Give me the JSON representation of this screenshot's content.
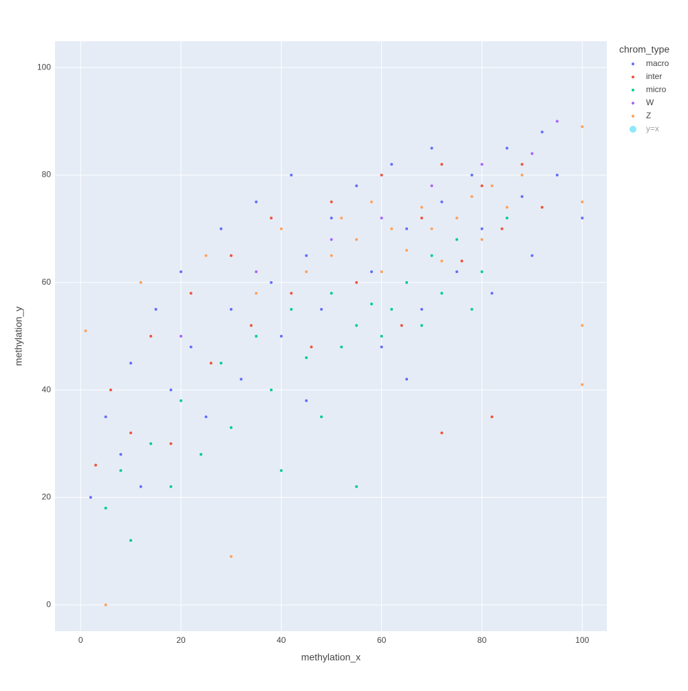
{
  "chart_data": {
    "type": "scatter",
    "x_label": "methylation_x",
    "y_label": "methylation_y",
    "legend_title": "chrom_type",
    "xlim": [
      -5.1,
      104.9
    ],
    "ylim": [
      -4.9,
      104.9
    ],
    "xticks": [
      0,
      20,
      40,
      60,
      80,
      100
    ],
    "yticks": [
      0,
      20,
      40,
      60,
      80,
      100
    ],
    "grid": true,
    "legend": "right",
    "series": [
      {
        "name": "macro",
        "color": "#636efa",
        "x": [
          2,
          5,
          8,
          10,
          12,
          15,
          18,
          20,
          22,
          25,
          28,
          30,
          32,
          35,
          38,
          40,
          42,
          45,
          48,
          50,
          55,
          58,
          60,
          62,
          65,
          68,
          70,
          72,
          75,
          78,
          80,
          82,
          85,
          88,
          90,
          92,
          95,
          100,
          45,
          65
        ],
        "values": [
          20,
          35,
          28,
          45,
          22,
          55,
          40,
          62,
          48,
          35,
          70,
          55,
          42,
          75,
          60,
          50,
          80,
          65,
          55,
          72,
          78,
          62,
          48,
          82,
          70,
          55,
          85,
          75,
          62,
          80,
          70,
          58,
          85,
          76,
          65,
          88,
          80,
          72,
          38,
          42
        ]
      },
      {
        "name": "inter",
        "color": "#EF553B",
        "x": [
          3,
          6,
          10,
          14,
          18,
          22,
          26,
          30,
          34,
          38,
          42,
          46,
          50,
          55,
          60,
          64,
          68,
          72,
          76,
          80,
          84,
          88,
          92,
          82,
          72
        ],
        "values": [
          26,
          40,
          32,
          50,
          30,
          58,
          45,
          65,
          52,
          72,
          58,
          48,
          75,
          60,
          80,
          52,
          72,
          82,
          64,
          78,
          70,
          82,
          74,
          35,
          32
        ]
      },
      {
        "name": "micro",
        "color": "#00cc96",
        "x": [
          5,
          8,
          10,
          14,
          18,
          20,
          24,
          28,
          30,
          35,
          38,
          42,
          45,
          48,
          50,
          52,
          55,
          58,
          60,
          62,
          65,
          68,
          70,
          72,
          75,
          78,
          80,
          85,
          40,
          55
        ],
        "values": [
          18,
          25,
          12,
          30,
          22,
          38,
          28,
          45,
          33,
          50,
          40,
          55,
          46,
          35,
          58,
          48,
          52,
          56,
          50,
          55,
          60,
          52,
          65,
          58,
          68,
          55,
          62,
          72,
          25,
          22
        ]
      },
      {
        "name": "W",
        "color": "#ab63fa",
        "x": [
          20,
          35,
          50,
          60,
          70,
          80,
          90,
          95
        ],
        "values": [
          50,
          62,
          68,
          72,
          78,
          82,
          84,
          90
        ]
      },
      {
        "name": "Z",
        "color": "#FFA15A",
        "x": [
          1,
          5,
          12,
          25,
          35,
          40,
          45,
          50,
          52,
          55,
          58,
          60,
          62,
          65,
          68,
          70,
          72,
          75,
          78,
          80,
          82,
          85,
          88,
          100,
          100,
          100,
          100,
          30
        ],
        "values": [
          51,
          0,
          60,
          65,
          58,
          70,
          62,
          65,
          72,
          68,
          75,
          62,
          70,
          66,
          74,
          70,
          64,
          72,
          76,
          68,
          78,
          74,
          80,
          89,
          75,
          52,
          41,
          9
        ]
      },
      {
        "name": "y=x",
        "color": "#19d3f3",
        "hidden": true
      }
    ]
  }
}
